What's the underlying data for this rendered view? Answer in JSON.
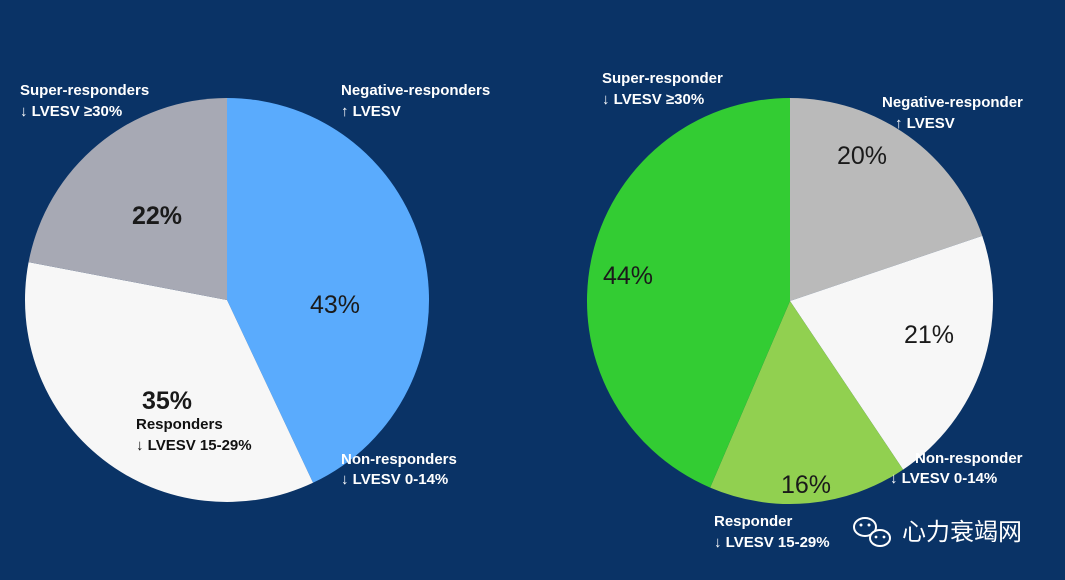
{
  "chart_data": [
    {
      "type": "pie",
      "title": "",
      "slices": [
        {
          "key": "negative",
          "value": 43,
          "label": "43%",
          "name": "Negative-responders",
          "sub": "↑ LVESV",
          "color": "#5aabfd",
          "bold": false
        },
        {
          "key": "non",
          "value": 0,
          "label": "",
          "name": "Non-responders",
          "sub": "↓ LVESV 0-14%",
          "color": "#ffffff",
          "bold": false
        },
        {
          "key": "responders",
          "value": 35,
          "label": "35%",
          "name": "Responders",
          "sub": "↓ LVESV 15-29%",
          "color": "#f7f7f7",
          "bold": true
        },
        {
          "key": "super",
          "value": 22,
          "label": "22%",
          "name": "Super-responders",
          "sub": "↓ LVESV ≥30%",
          "color": "#a7a9b4",
          "bold": true
        }
      ]
    },
    {
      "type": "pie",
      "title": "",
      "slices": [
        {
          "key": "negative",
          "value": 20,
          "label": "20%",
          "name": "Negative-responder",
          "sub": "↑ LVESV",
          "color": "#bababa",
          "bold": false
        },
        {
          "key": "non",
          "value": 21,
          "label": "21%",
          "name": "Non-responder",
          "sub": "↓ LVESV 0-14%",
          "color": "#f7f7f7",
          "bold": false
        },
        {
          "key": "responder",
          "value": 16,
          "label": "16%",
          "name": "Responder",
          "sub": "↓ LVESV 15-29%",
          "color": "#91d050",
          "bold": false
        },
        {
          "key": "super",
          "value": 44,
          "label": "44%",
          "name": "Super-responder",
          "sub": "↓ LVESV ≥30%",
          "color": "#33cc33",
          "bold": false
        }
      ]
    }
  ],
  "watermark": {
    "text": "心力衰竭网",
    "icon": "wechat-icon"
  }
}
